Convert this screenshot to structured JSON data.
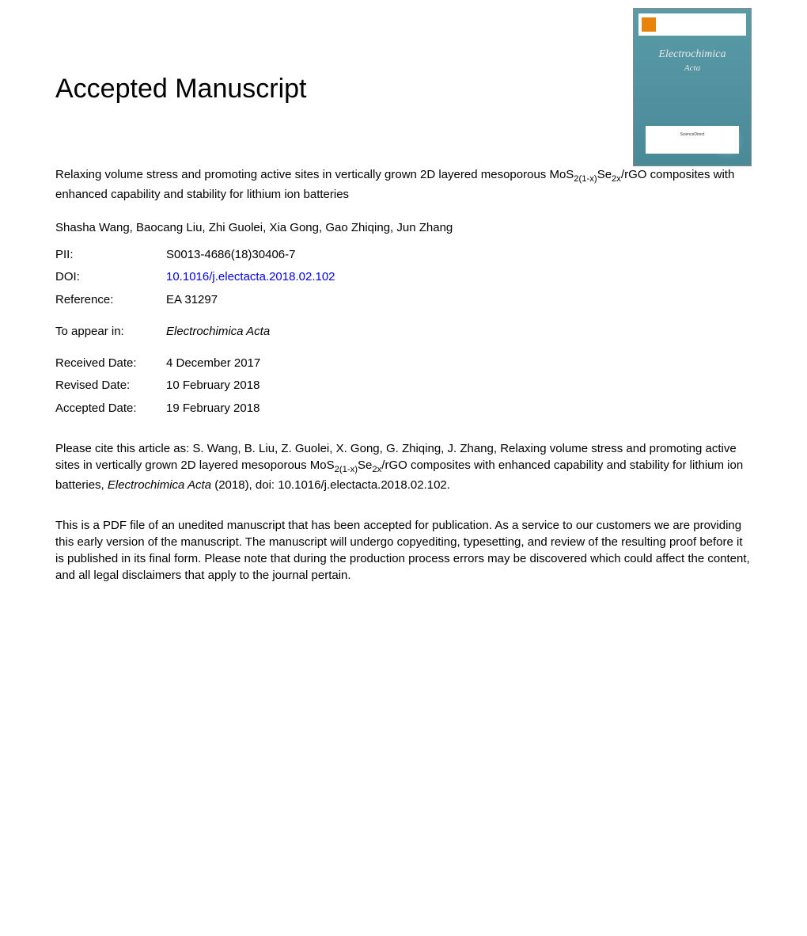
{
  "page": {
    "heading": "Accepted Manuscript",
    "article_title_pre": "Relaxing volume stress and promoting active sites in vertically grown 2D layered mesoporous MoS",
    "article_title_sub1": "2(1-x)",
    "article_title_mid": "Se",
    "article_title_sub2": "2x",
    "article_title_post": "/rGO composites with enhanced capability and stability for lithium ion batteries",
    "authors": "Shasha Wang, Baocang Liu, Zhi Guolei, Xia Gong, Gao Zhiqing, Jun Zhang"
  },
  "meta": {
    "pii_label": "PII:",
    "pii_value": "S0013-4686(18)30406-7",
    "doi_label": "DOI:",
    "doi_value": "10.1016/j.electacta.2018.02.102",
    "ref_label": "Reference:",
    "ref_value": "EA 31297",
    "appear_label": "To appear in:",
    "appear_value": "Electrochimica Acta",
    "received_label": "Received Date:",
    "received_value": "4 December 2017",
    "revised_label": "Revised Date:",
    "revised_value": "10 February 2018",
    "accepted_label": "Accepted Date:",
    "accepted_value": "19 February 2018"
  },
  "citation": {
    "pre": "Please cite this article as: S. Wang, B. Liu, Z. Guolei, X. Gong, G. Zhiqing, J. Zhang, Relaxing volume stress and promoting active sites in vertically grown 2D layered mesoporous MoS",
    "sub1": "2(1-x)",
    "mid": "Se",
    "sub2": "2x",
    "post1": "/rGO composites with enhanced capability and stability for lithium ion batteries, ",
    "journal": "Electrochimica Acta",
    "post2": " (2018), doi: 10.1016/j.electacta.2018.02.102."
  },
  "disclaimer": "This is a PDF file of an unedited manuscript that has been accepted for publication. As a service to our customers we are providing this early version of the manuscript. The manuscript will undergo copyediting, typesetting, and review of the resulting proof before it is published in its final form. Please note that during the production process errors may be discovered which could affect the content, and all legal disclaimers that apply to the journal pertain.",
  "cover": {
    "title_line1": "Electrochimica",
    "title_line2": "Acta",
    "bottom_text": "ScienceDirect"
  },
  "colors": {
    "text": "#000000",
    "background": "#ffffff",
    "link": "#0000ee",
    "cover_bg_top": "#5a9ba8",
    "cover_bg_bottom": "#4a8a98",
    "cover_logo": "#e8830b",
    "cover_text": "#e8e8e8"
  },
  "typography": {
    "heading_fontsize": 34,
    "body_fontsize": 15,
    "font_family": "Arial, Helvetica, sans-serif",
    "cover_font": "Georgia, serif"
  }
}
